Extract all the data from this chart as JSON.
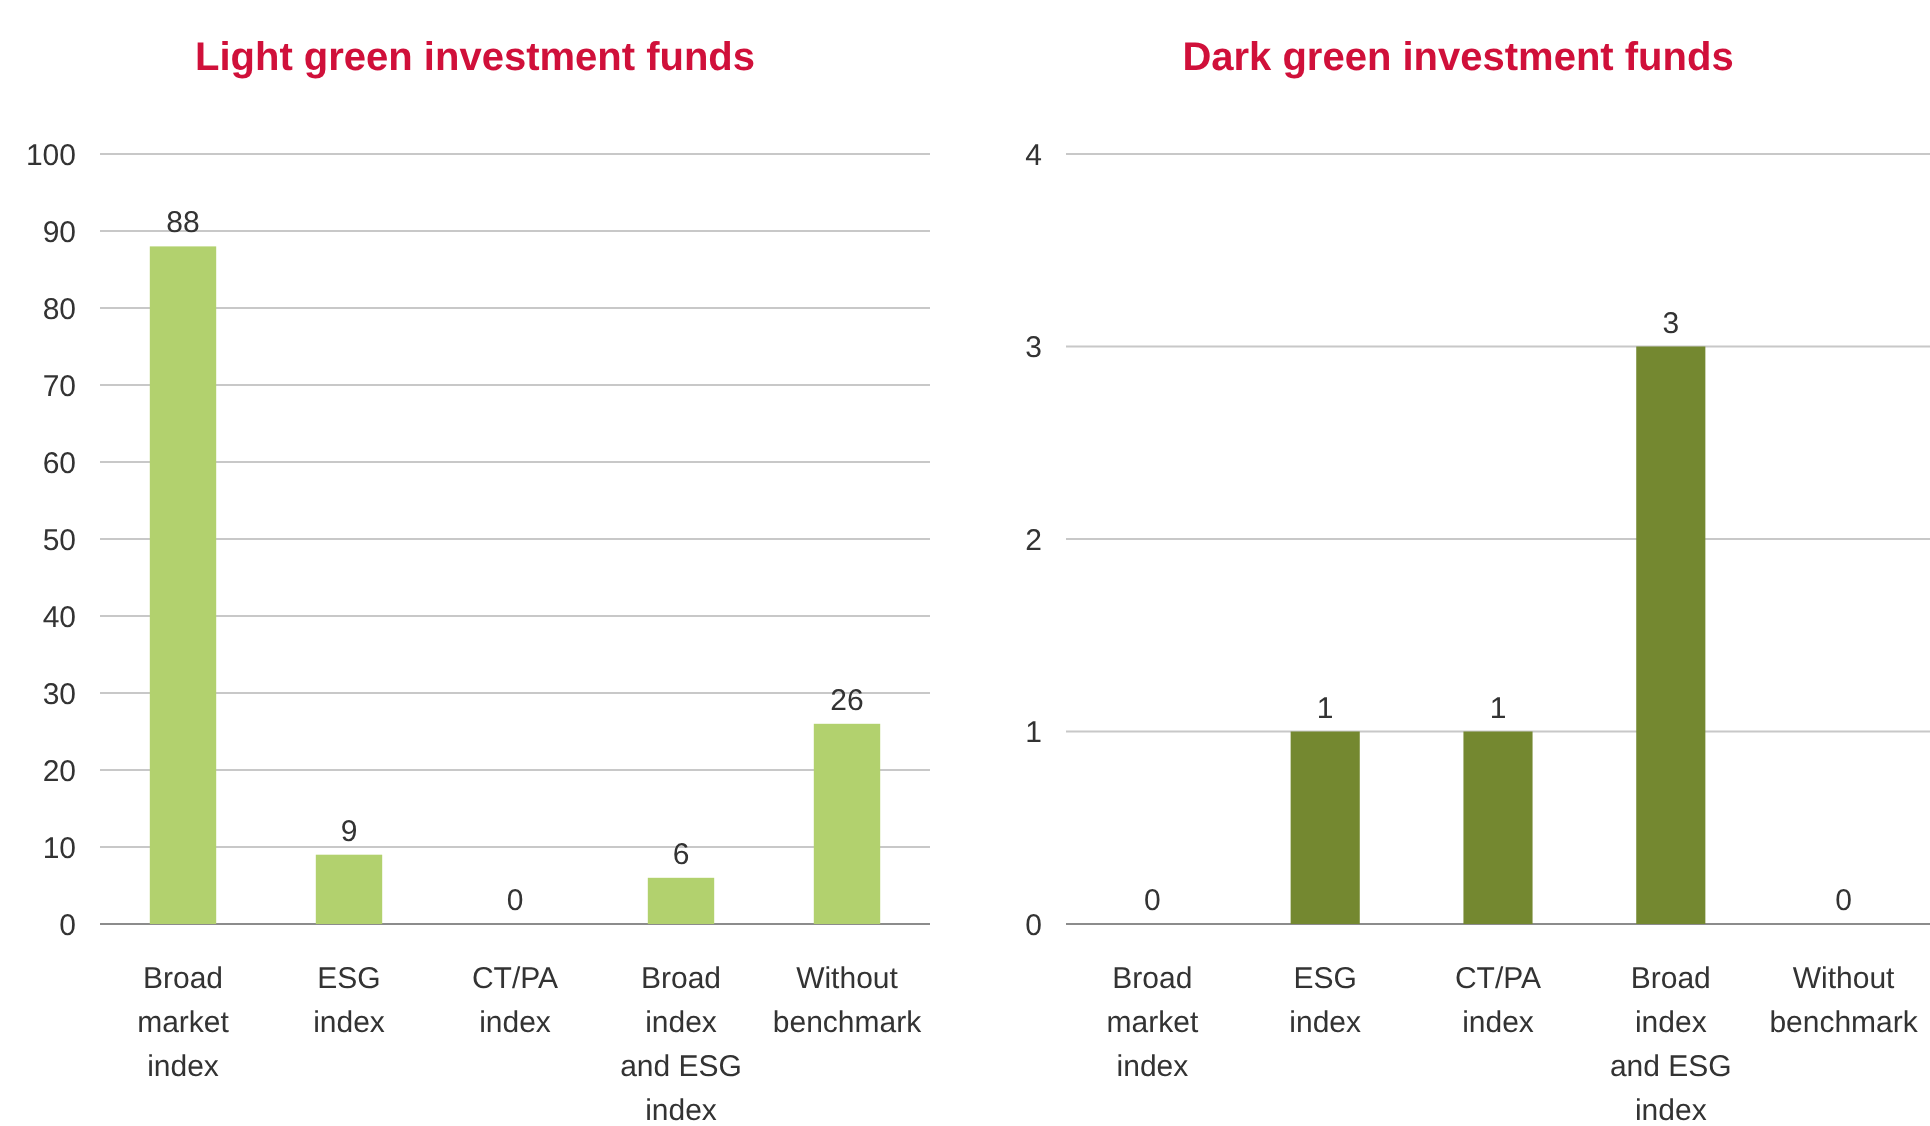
{
  "chart_data": [
    {
      "type": "bar",
      "title": "Light green investment funds",
      "categories": [
        "Broad market index",
        "ESG index",
        "CT/PA index",
        "Broad index and ESG index",
        "Without benchmark"
      ],
      "values": [
        88,
        9,
        0,
        6,
        26
      ],
      "color": "#b2d16e",
      "ylim": [
        0,
        100
      ],
      "yticks": [
        0,
        10,
        20,
        30,
        40,
        50,
        60,
        70,
        80,
        90,
        100
      ],
      "grid": "y",
      "data_labels": true
    },
    {
      "type": "bar",
      "title": "Dark green investment funds",
      "categories": [
        "Broad market index",
        "ESG index",
        "CT/PA index",
        "Broad index and ESG index",
        "Without benchmark"
      ],
      "values": [
        0,
        1,
        1,
        3,
        0
      ],
      "color": "#748830",
      "ylim": [
        0,
        4
      ],
      "yticks": [
        0,
        1,
        2,
        3,
        4
      ],
      "grid": "y",
      "data_labels": true
    }
  ]
}
